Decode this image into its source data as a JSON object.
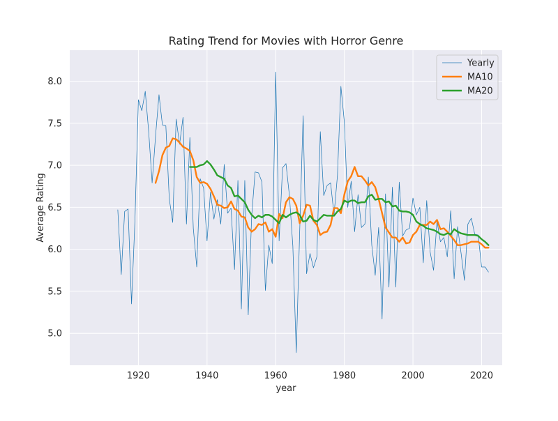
{
  "chart_data": {
    "type": "line",
    "title": "Rating Trend for Movies with Horror Genre",
    "xlabel": "year",
    "ylabel": "Average Rating",
    "xlim": [
      1900,
      2026
    ],
    "ylim": [
      4.62,
      8.37
    ],
    "xticks": [
      1920,
      1940,
      1960,
      1980,
      2000,
      2020
    ],
    "yticks": [
      5.0,
      5.5,
      6.0,
      6.5,
      7.0,
      7.5,
      8.0
    ],
    "grid": true,
    "legend_position": "top-right",
    "colors": {
      "background": "#eaeaf2",
      "grid": "#ffffff",
      "yearly": "#1f77b4",
      "ma10": "#ff7f0e",
      "ma20": "#2ca02c"
    },
    "series": [
      {
        "name": "Yearly",
        "x": [
          1914,
          1915,
          1916,
          1917,
          1918,
          1919,
          1920,
          1921,
          1922,
          1923,
          1924,
          1925,
          1926,
          1927,
          1928,
          1929,
          1930,
          1931,
          1932,
          1933,
          1934,
          1935,
          1936,
          1937,
          1938,
          1939,
          1940,
          1941,
          1942,
          1943,
          1944,
          1945,
          1946,
          1947,
          1948,
          1949,
          1950,
          1951,
          1952,
          1953,
          1954,
          1955,
          1956,
          1957,
          1958,
          1959,
          1960,
          1961,
          1962,
          1963,
          1964,
          1965,
          1966,
          1967,
          1968,
          1969,
          1970,
          1971,
          1972,
          1973,
          1974,
          1975,
          1976,
          1977,
          1978,
          1979,
          1980,
          1981,
          1982,
          1983,
          1984,
          1985,
          1986,
          1987,
          1988,
          1989,
          1990,
          1991,
          1992,
          1993,
          1994,
          1995,
          1996,
          1997,
          1998,
          1999,
          2000,
          2001,
          2002,
          2003,
          2004,
          2005,
          2006,
          2007,
          2008,
          2009,
          2010,
          2011,
          2012,
          2013,
          2014,
          2015,
          2016,
          2017,
          2018,
          2019,
          2020,
          2021,
          2022
        ],
        "values": [
          6.47,
          5.7,
          6.45,
          6.48,
          5.35,
          6.35,
          7.78,
          7.65,
          7.88,
          7.4,
          6.79,
          7.35,
          7.84,
          7.48,
          7.47,
          6.6,
          6.32,
          7.55,
          7.25,
          7.57,
          6.3,
          7.33,
          6.25,
          5.79,
          6.84,
          6.73,
          6.1,
          6.68,
          6.36,
          6.59,
          6.3,
          7.01,
          6.43,
          6.49,
          5.76,
          6.82,
          5.29,
          6.82,
          5.22,
          6.39,
          6.92,
          6.91,
          6.8,
          5.51,
          6.05,
          5.83,
          8.11,
          6.1,
          6.97,
          7.02,
          6.64,
          6.04,
          4.77,
          6.22,
          7.59,
          5.71,
          5.95,
          5.78,
          5.91,
          7.4,
          6.64,
          6.76,
          6.79,
          6.41,
          6.88,
          7.94,
          7.52,
          6.5,
          6.81,
          6.21,
          6.65,
          6.26,
          6.3,
          6.86,
          6.05,
          5.69,
          6.26,
          5.17,
          6.66,
          5.55,
          6.74,
          5.55,
          6.8,
          6.16,
          6.23,
          6.25,
          6.61,
          6.41,
          6.5,
          5.84,
          6.58,
          5.97,
          5.75,
          6.34,
          6.09,
          6.14,
          5.91,
          6.46,
          5.65,
          6.27,
          5.96,
          5.63,
          6.3,
          6.37,
          6.18,
          6.17,
          5.79,
          5.79,
          5.73
        ]
      },
      {
        "name": "MA10",
        "x": [
          1925,
          1926,
          1927,
          1928,
          1929,
          1930,
          1931,
          1932,
          1933,
          1934,
          1935,
          1936,
          1937,
          1938,
          1939,
          1940,
          1941,
          1942,
          1943,
          1944,
          1945,
          1946,
          1947,
          1948,
          1949,
          1950,
          1951,
          1952,
          1953,
          1954,
          1955,
          1956,
          1957,
          1958,
          1959,
          1960,
          1961,
          1962,
          1963,
          1964,
          1965,
          1966,
          1967,
          1968,
          1969,
          1970,
          1971,
          1972,
          1973,
          1974,
          1975,
          1976,
          1977,
          1978,
          1979,
          1980,
          1981,
          1982,
          1983,
          1984,
          1985,
          1986,
          1987,
          1988,
          1989,
          1990,
          1991,
          1992,
          1993,
          1994,
          1995,
          1996,
          1997,
          1998,
          1999,
          2000,
          2001,
          2002,
          2003,
          2004,
          2005,
          2006,
          2007,
          2008,
          2009,
          2010,
          2011,
          2012,
          2013,
          2014,
          2015,
          2016,
          2017,
          2018,
          2019,
          2020,
          2021,
          2022
        ],
        "values": [
          6.79,
          6.93,
          7.12,
          7.21,
          7.23,
          7.32,
          7.31,
          7.27,
          7.22,
          7.2,
          7.17,
          7.06,
          6.86,
          6.79,
          6.8,
          6.78,
          6.72,
          6.63,
          6.53,
          6.52,
          6.49,
          6.5,
          6.57,
          6.48,
          6.46,
          6.39,
          6.38,
          6.26,
          6.21,
          6.24,
          6.3,
          6.29,
          6.32,
          6.21,
          6.24,
          6.15,
          6.42,
          6.37,
          6.56,
          6.62,
          6.6,
          6.52,
          6.31,
          6.4,
          6.53,
          6.52,
          6.34,
          6.29,
          6.17,
          6.2,
          6.21,
          6.29,
          6.49,
          6.49,
          6.43,
          6.65,
          6.81,
          6.87,
          6.98,
          6.87,
          6.87,
          6.82,
          6.76,
          6.8,
          6.74,
          6.6,
          6.43,
          6.26,
          6.2,
          6.14,
          6.14,
          6.09,
          6.14,
          6.07,
          6.08,
          6.17,
          6.21,
          6.29,
          6.29,
          6.29,
          6.33,
          6.3,
          6.35,
          6.24,
          6.25,
          6.21,
          6.16,
          6.11,
          6.05,
          6.05,
          6.06,
          6.07,
          6.09,
          6.09,
          6.09,
          6.06,
          6.02,
          6.02
        ]
      },
      {
        "name": "MA20",
        "x": [
          1935,
          1936,
          1937,
          1938,
          1939,
          1940,
          1941,
          1942,
          1943,
          1944,
          1945,
          1946,
          1947,
          1948,
          1949,
          1950,
          1951,
          1952,
          1953,
          1954,
          1955,
          1956,
          1957,
          1958,
          1959,
          1960,
          1961,
          1962,
          1963,
          1964,
          1965,
          1966,
          1967,
          1968,
          1969,
          1970,
          1971,
          1972,
          1973,
          1974,
          1975,
          1976,
          1977,
          1978,
          1979,
          1980,
          1981,
          1982,
          1983,
          1984,
          1985,
          1986,
          1987,
          1988,
          1989,
          1990,
          1991,
          1992,
          1993,
          1994,
          1995,
          1996,
          1997,
          1998,
          1999,
          2000,
          2001,
          2002,
          2003,
          2004,
          2005,
          2006,
          2007,
          2008,
          2009,
          2010,
          2011,
          2012,
          2013,
          2014,
          2015,
          2016,
          2017,
          2018,
          2019,
          2020,
          2021,
          2022
        ],
        "values": [
          6.98,
          6.98,
          6.98,
          7.0,
          7.01,
          7.05,
          7.01,
          6.95,
          6.88,
          6.86,
          6.84,
          6.76,
          6.73,
          6.63,
          6.64,
          6.6,
          6.56,
          6.47,
          6.41,
          6.37,
          6.4,
          6.38,
          6.41,
          6.41,
          6.39,
          6.35,
          6.31,
          6.41,
          6.38,
          6.41,
          6.43,
          6.44,
          6.41,
          6.33,
          6.34,
          6.4,
          6.35,
          6.33,
          6.37,
          6.41,
          6.4,
          6.4,
          6.4,
          6.45,
          6.48,
          6.58,
          6.56,
          6.58,
          6.58,
          6.55,
          6.56,
          6.56,
          6.63,
          6.65,
          6.59,
          6.6,
          6.6,
          6.56,
          6.57,
          6.51,
          6.52,
          6.46,
          6.45,
          6.45,
          6.44,
          6.41,
          6.33,
          6.3,
          6.28,
          6.25,
          6.24,
          6.23,
          6.21,
          6.18,
          6.17,
          6.19,
          6.18,
          6.24,
          6.21,
          6.19,
          6.18,
          6.17,
          6.17,
          6.17,
          6.16,
          6.12,
          6.09,
          6.05
        ]
      }
    ]
  }
}
